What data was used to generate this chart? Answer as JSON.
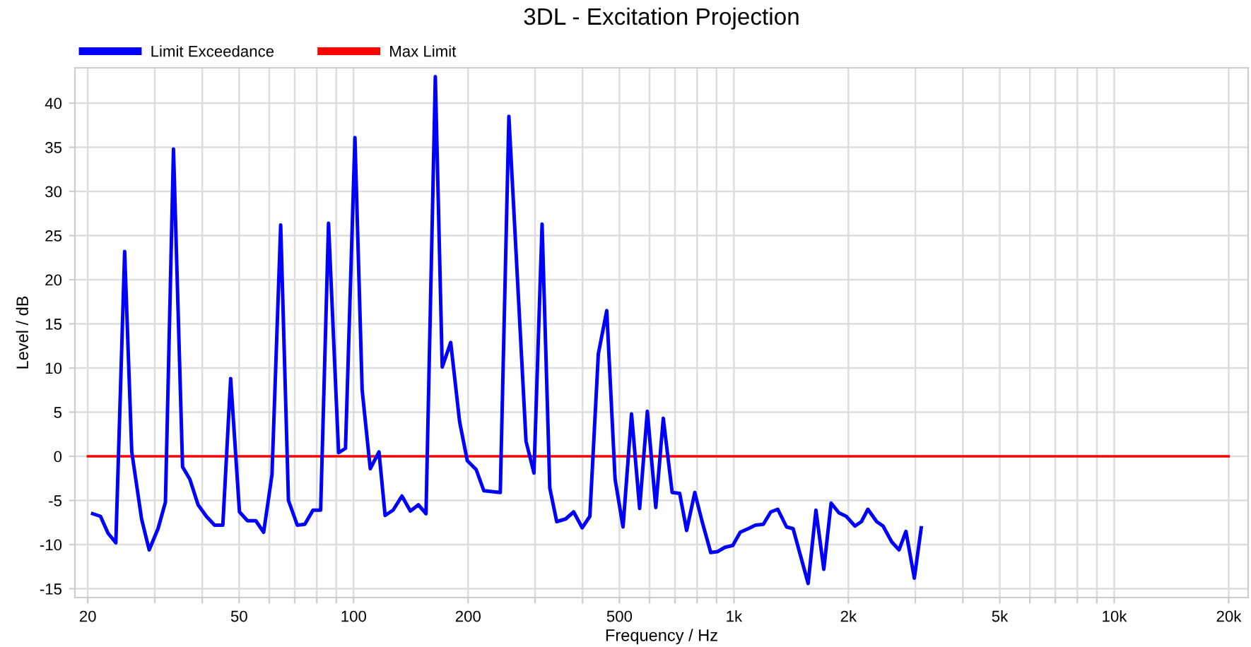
{
  "chart_data": {
    "type": "line",
    "title": "3DL - Excitation Projection",
    "xlabel": "Frequency / Hz",
    "ylabel": "Level / dB",
    "log": "x",
    "xlim": [
      18.5,
      22500
    ],
    "ylim": [
      -16,
      44
    ],
    "xticks": [
      20,
      {
        "value": 30,
        "label": null
      },
      {
        "value": 40,
        "label": null
      },
      50,
      {
        "value": 60,
        "label": null
      },
      {
        "value": 70,
        "label": null
      },
      {
        "value": 80,
        "label": null
      },
      {
        "value": 90,
        "label": null
      },
      100,
      200,
      {
        "value": 300,
        "label": null
      },
      {
        "value": 400,
        "label": null
      },
      500,
      {
        "value": 600,
        "label": null
      },
      {
        "value": 700,
        "label": null
      },
      {
        "value": 800,
        "label": null
      },
      {
        "value": 900,
        "label": null
      },
      {
        "value": 1000,
        "label": "1k"
      },
      {
        "value": 2000,
        "label": "2k"
      },
      {
        "value": 3000,
        "label": null
      },
      {
        "value": 4000,
        "label": null
      },
      {
        "value": 5000,
        "label": "5k"
      },
      {
        "value": 6000,
        "label": null
      },
      {
        "value": 7000,
        "label": null
      },
      {
        "value": 8000,
        "label": null
      },
      {
        "value": 9000,
        "label": null
      },
      {
        "value": 10000,
        "label": "10k"
      },
      {
        "value": 20000,
        "label": "20k"
      }
    ],
    "yticks": [
      -15,
      -10,
      -5,
      0,
      5,
      10,
      15,
      20,
      25,
      30,
      35,
      40
    ],
    "grid": true,
    "legend": "top left",
    "line_style": "solid",
    "marker": "none",
    "series": [
      {
        "name": "Limit Exceedance",
        "color": "#0000ff",
        "x": [
          20.6,
          21.6,
          22.6,
          23.7,
          25.0,
          26.1,
          27.7,
          29.0,
          30.6,
          32.0,
          33.6,
          35.5,
          37.1,
          39.0,
          41.0,
          43.1,
          45.3,
          47.5,
          50.1,
          52.6,
          55.3,
          58.0,
          61.0,
          64.3,
          67.4,
          71.1,
          74.4,
          78.2,
          81.9,
          85.9,
          91.3,
          95.2,
          100.8,
          105.3,
          110.6,
          116.6,
          121,
          127,
          134,
          141,
          148,
          155,
          164,
          171,
          180,
          190,
          199,
          210,
          220,
          243,
          256,
          284,
          298,
          313,
          328,
          342,
          361,
          379,
          399,
          418,
          440,
          463,
          487,
          511,
          538,
          565,
          592,
          623,
          652,
          688,
          720,
          751,
          789,
          825,
          869,
          905,
          948,
          993,
          1039,
          1090,
          1139,
          1195,
          1250,
          1304,
          1375,
          1431,
          1567,
          1643,
          1723,
          1801,
          1888,
          1974,
          2081,
          2164,
          2250,
          2373,
          2467,
          2600,
          2718,
          2833,
          2981,
          3108
        ],
        "values": [
          -6.5,
          -6.8,
          -8.7,
          -9.8,
          23.2,
          0.5,
          -7.1,
          -10.6,
          -8.2,
          -5.2,
          34.8,
          -1.2,
          -2.6,
          -5.5,
          -6.8,
          -7.8,
          -7.8,
          8.8,
          -6.3,
          -7.3,
          -7.3,
          -8.6,
          -2.1,
          26.2,
          -5.0,
          -7.8,
          -7.7,
          -6.1,
          -6.1,
          26.4,
          0.4,
          0.9,
          36.1,
          7.5,
          -1.4,
          0.5,
          -6.7,
          -6.1,
          -4.5,
          -6.2,
          -5.5,
          -6.5,
          43.0,
          10.1,
          12.9,
          3.9,
          -0.5,
          -1.5,
          -3.9,
          -4.1,
          38.5,
          1.7,
          -1.9,
          26.3,
          -3.6,
          -7.4,
          -7.1,
          -6.3,
          -8.1,
          -6.8,
          11.6,
          16.5,
          -2.6,
          -8.0,
          4.8,
          -5.9,
          5.1,
          -5.8,
          4.3,
          -4.1,
          -4.2,
          -8.4,
          -4.1,
          -7.4,
          -10.9,
          -10.8,
          -10.3,
          -10.1,
          -8.6,
          -8.2,
          -7.8,
          -7.7,
          -6.3,
          -6.0,
          -8.0,
          -8.2,
          -14.4,
          -6.1,
          -12.8,
          -5.3,
          -6.4,
          -6.8,
          -7.9,
          -7.4,
          -6.0,
          -7.4,
          -7.9,
          -9.7,
          -10.6,
          -8.5,
          -13.8,
          -8.1
        ]
      },
      {
        "name": "Max Limit",
        "color": "#ff0000",
        "x": [
          20,
          20000
        ],
        "values": [
          0,
          0
        ]
      }
    ]
  }
}
